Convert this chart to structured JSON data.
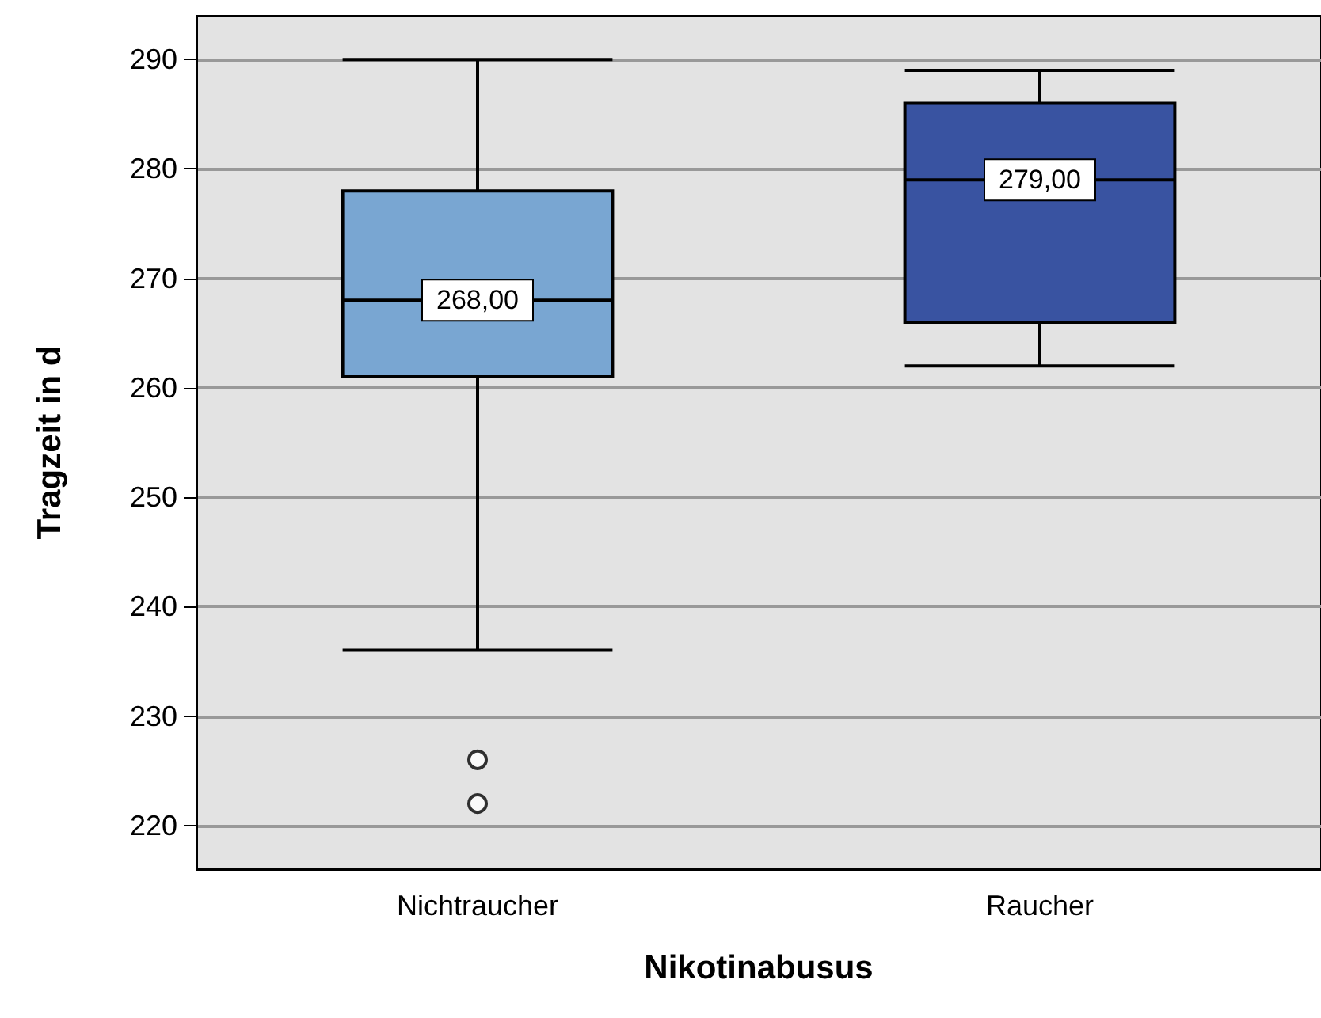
{
  "chart_data": {
    "type": "box",
    "xlabel": "Nikotinabusus",
    "ylabel": "Tragzeit in d",
    "categories": [
      "Nichtraucher",
      "Raucher"
    ],
    "colors": [
      "#79a6d2",
      "#3953a1"
    ],
    "boxes": [
      {
        "low": 236,
        "q1": 261,
        "median": 268,
        "q3": 278,
        "high": 290,
        "outliers": [
          226,
          222
        ]
      },
      {
        "low": 262,
        "q1": 266,
        "median": 279,
        "q3": 286,
        "high": 289
      }
    ],
    "ylim": [
      216,
      294
    ],
    "yticks": [
      220,
      230,
      240,
      250,
      260,
      270,
      280,
      290
    ],
    "grid": "y",
    "annotations": [
      {
        "text": "268,00",
        "x": "Nichtraucher",
        "y": 268
      },
      {
        "text": "279,00",
        "x": "Raucher",
        "y": 279
      }
    ]
  }
}
